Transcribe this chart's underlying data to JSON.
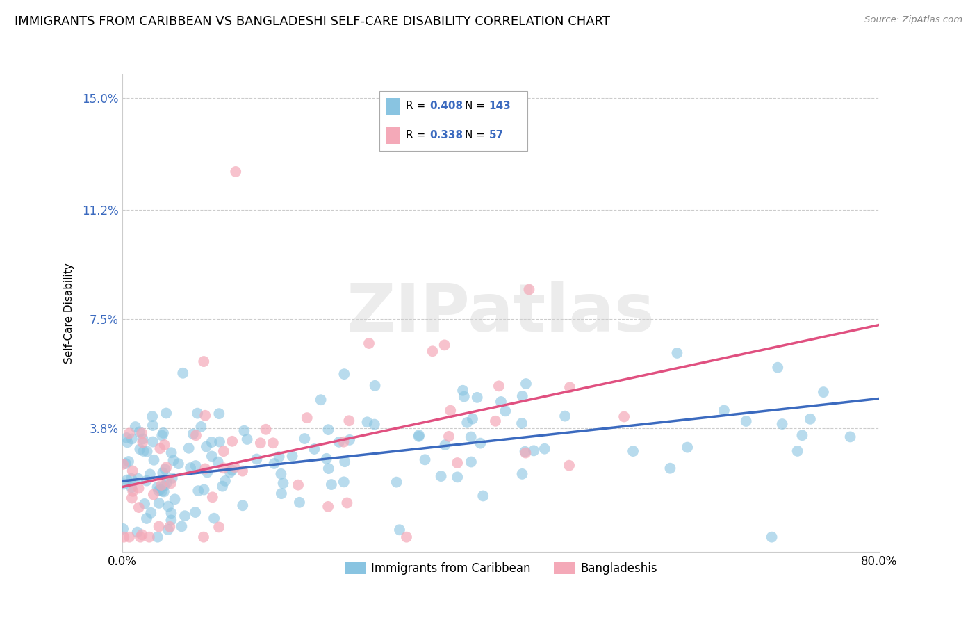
{
  "title": "IMMIGRANTS FROM CARIBBEAN VS BANGLADESHI SELF-CARE DISABILITY CORRELATION CHART",
  "source": "Source: ZipAtlas.com",
  "ylabel": "Self-Care Disability",
  "x_min": 0.0,
  "x_max": 0.8,
  "y_min": -0.004,
  "y_max": 0.158,
  "y_ticks": [
    0.038,
    0.075,
    0.112,
    0.15
  ],
  "y_tick_labels": [
    "3.8%",
    "7.5%",
    "11.2%",
    "15.0%"
  ],
  "x_tick_labels": [
    "0.0%",
    "80.0%"
  ],
  "x_ticks": [
    0.0,
    0.8
  ],
  "blue_R": 0.408,
  "blue_N": 143,
  "pink_R": 0.338,
  "pink_N": 57,
  "blue_color": "#89c4e1",
  "pink_color": "#f4a9b8",
  "blue_line_color": "#3b6abf",
  "pink_line_color": "#e05080",
  "legend_label_blue": "Immigrants from Caribbean",
  "legend_label_pink": "Bangladeshis",
  "watermark": "ZIPatlas",
  "title_fontsize": 13,
  "axis_label_fontsize": 11,
  "tick_fontsize": 12,
  "legend_fontsize": 12,
  "background_color": "#ffffff",
  "grid_color": "#cccccc",
  "legend_text_color": "#3b6abf",
  "blue_line_end_y": 0.048,
  "pink_line_end_y": 0.073,
  "blue_line_start_y": 0.02,
  "pink_line_start_y": 0.018
}
